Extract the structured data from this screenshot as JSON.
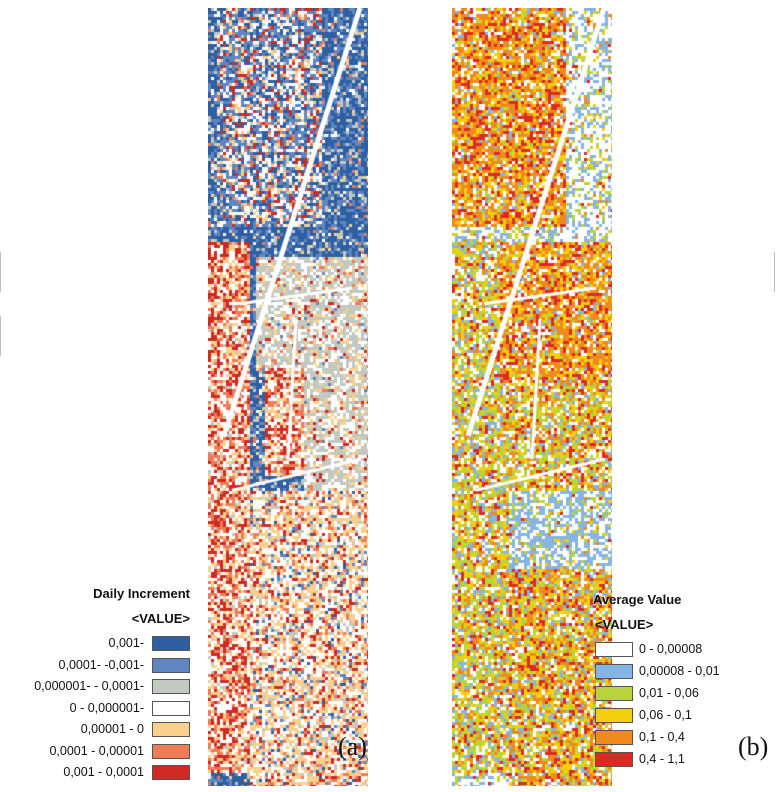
{
  "panel_a": {
    "caption": "(a)",
    "legend": {
      "title": "Daily Increment",
      "subtitle": "<VALUE>",
      "items": [
        {
          "label": "0,001-",
          "color": "#2f5fa3"
        },
        {
          "label": "0,0001- -0,001-",
          "color": "#5f86c0"
        },
        {
          "label": "0,000001- - 0,0001-",
          "color": "#c2c9c0"
        },
        {
          "label": "0 - 0,000001-",
          "color": "#ffffff"
        },
        {
          "label": "0,00001 - 0",
          "color": "#f9d08c"
        },
        {
          "label": "0,0001 - 0,00001",
          "color": "#ef7c57"
        },
        {
          "label": "0,001 - 0,0001",
          "color": "#cf2a22"
        }
      ]
    }
  },
  "panel_b": {
    "caption": "(b)",
    "legend": {
      "title": "Average Value",
      "subtitle": "<VALUE>",
      "items": [
        {
          "label": "0 - 0,00008",
          "color": "#ffffff"
        },
        {
          "label": "0,00008 - 0,01",
          "color": "#86b4e4"
        },
        {
          "label": "0,01 - 0,06",
          "color": "#b9d43a"
        },
        {
          "label": "0,06 - 0,1",
          "color": "#f3cf0e"
        },
        {
          "label": "0,1 - 0,4",
          "color": "#ef8a1e"
        },
        {
          "label": "0,4 - 1,1",
          "color": "#dc2a22"
        }
      ]
    }
  }
}
